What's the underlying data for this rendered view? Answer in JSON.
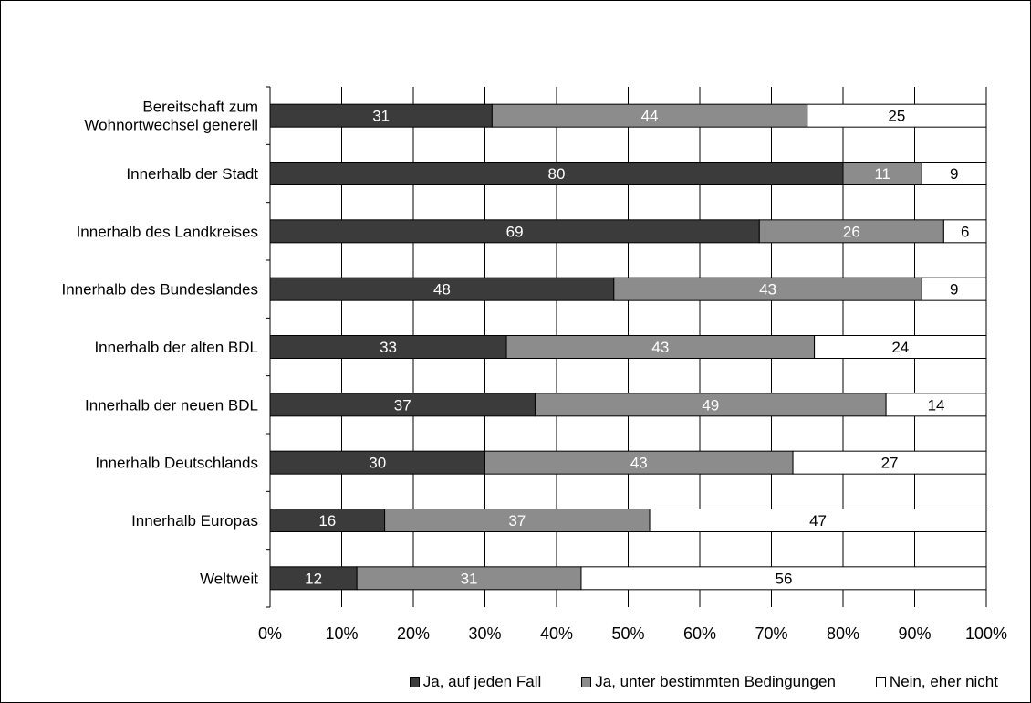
{
  "chart_data": {
    "type": "bar",
    "orientation": "horizontal",
    "stacked": "percent",
    "categories": [
      "Bereitschaft zum Wohnortwechsel generell",
      "Innerhalb der Stadt",
      "Innerhalb des Landkreises",
      "Innerhalb des Bundeslandes",
      "Innerhalb der alten BDL",
      "Innerhalb der neuen BDL",
      "Innerhalb Deutschlands",
      "Innerhalb Europas",
      "Weltweit"
    ],
    "series": [
      {
        "name": "Ja, auf jeden Fall",
        "color": "#3b3b3b",
        "label_color": "#ffffff",
        "values": [
          31,
          80,
          69,
          48,
          33,
          37,
          30,
          16,
          12
        ]
      },
      {
        "name": "Ja, unter bestimmten Bedingungen",
        "color": "#8c8c8c",
        "label_color": "#ffffff",
        "values": [
          44,
          11,
          26,
          43,
          43,
          49,
          43,
          37,
          31
        ]
      },
      {
        "name": "Nein, eher nicht",
        "color": "#ffffff",
        "label_color": "#000000",
        "values": [
          25,
          9,
          6,
          9,
          24,
          14,
          27,
          47,
          56
        ]
      }
    ],
    "x_ticks": [
      "0%",
      "10%",
      "20%",
      "30%",
      "40%",
      "50%",
      "60%",
      "70%",
      "80%",
      "90%",
      "100%"
    ],
    "xlim": [
      0,
      100
    ],
    "grid": true,
    "legend_position": "bottom-right",
    "title": "",
    "xlabel": "",
    "ylabel": ""
  }
}
